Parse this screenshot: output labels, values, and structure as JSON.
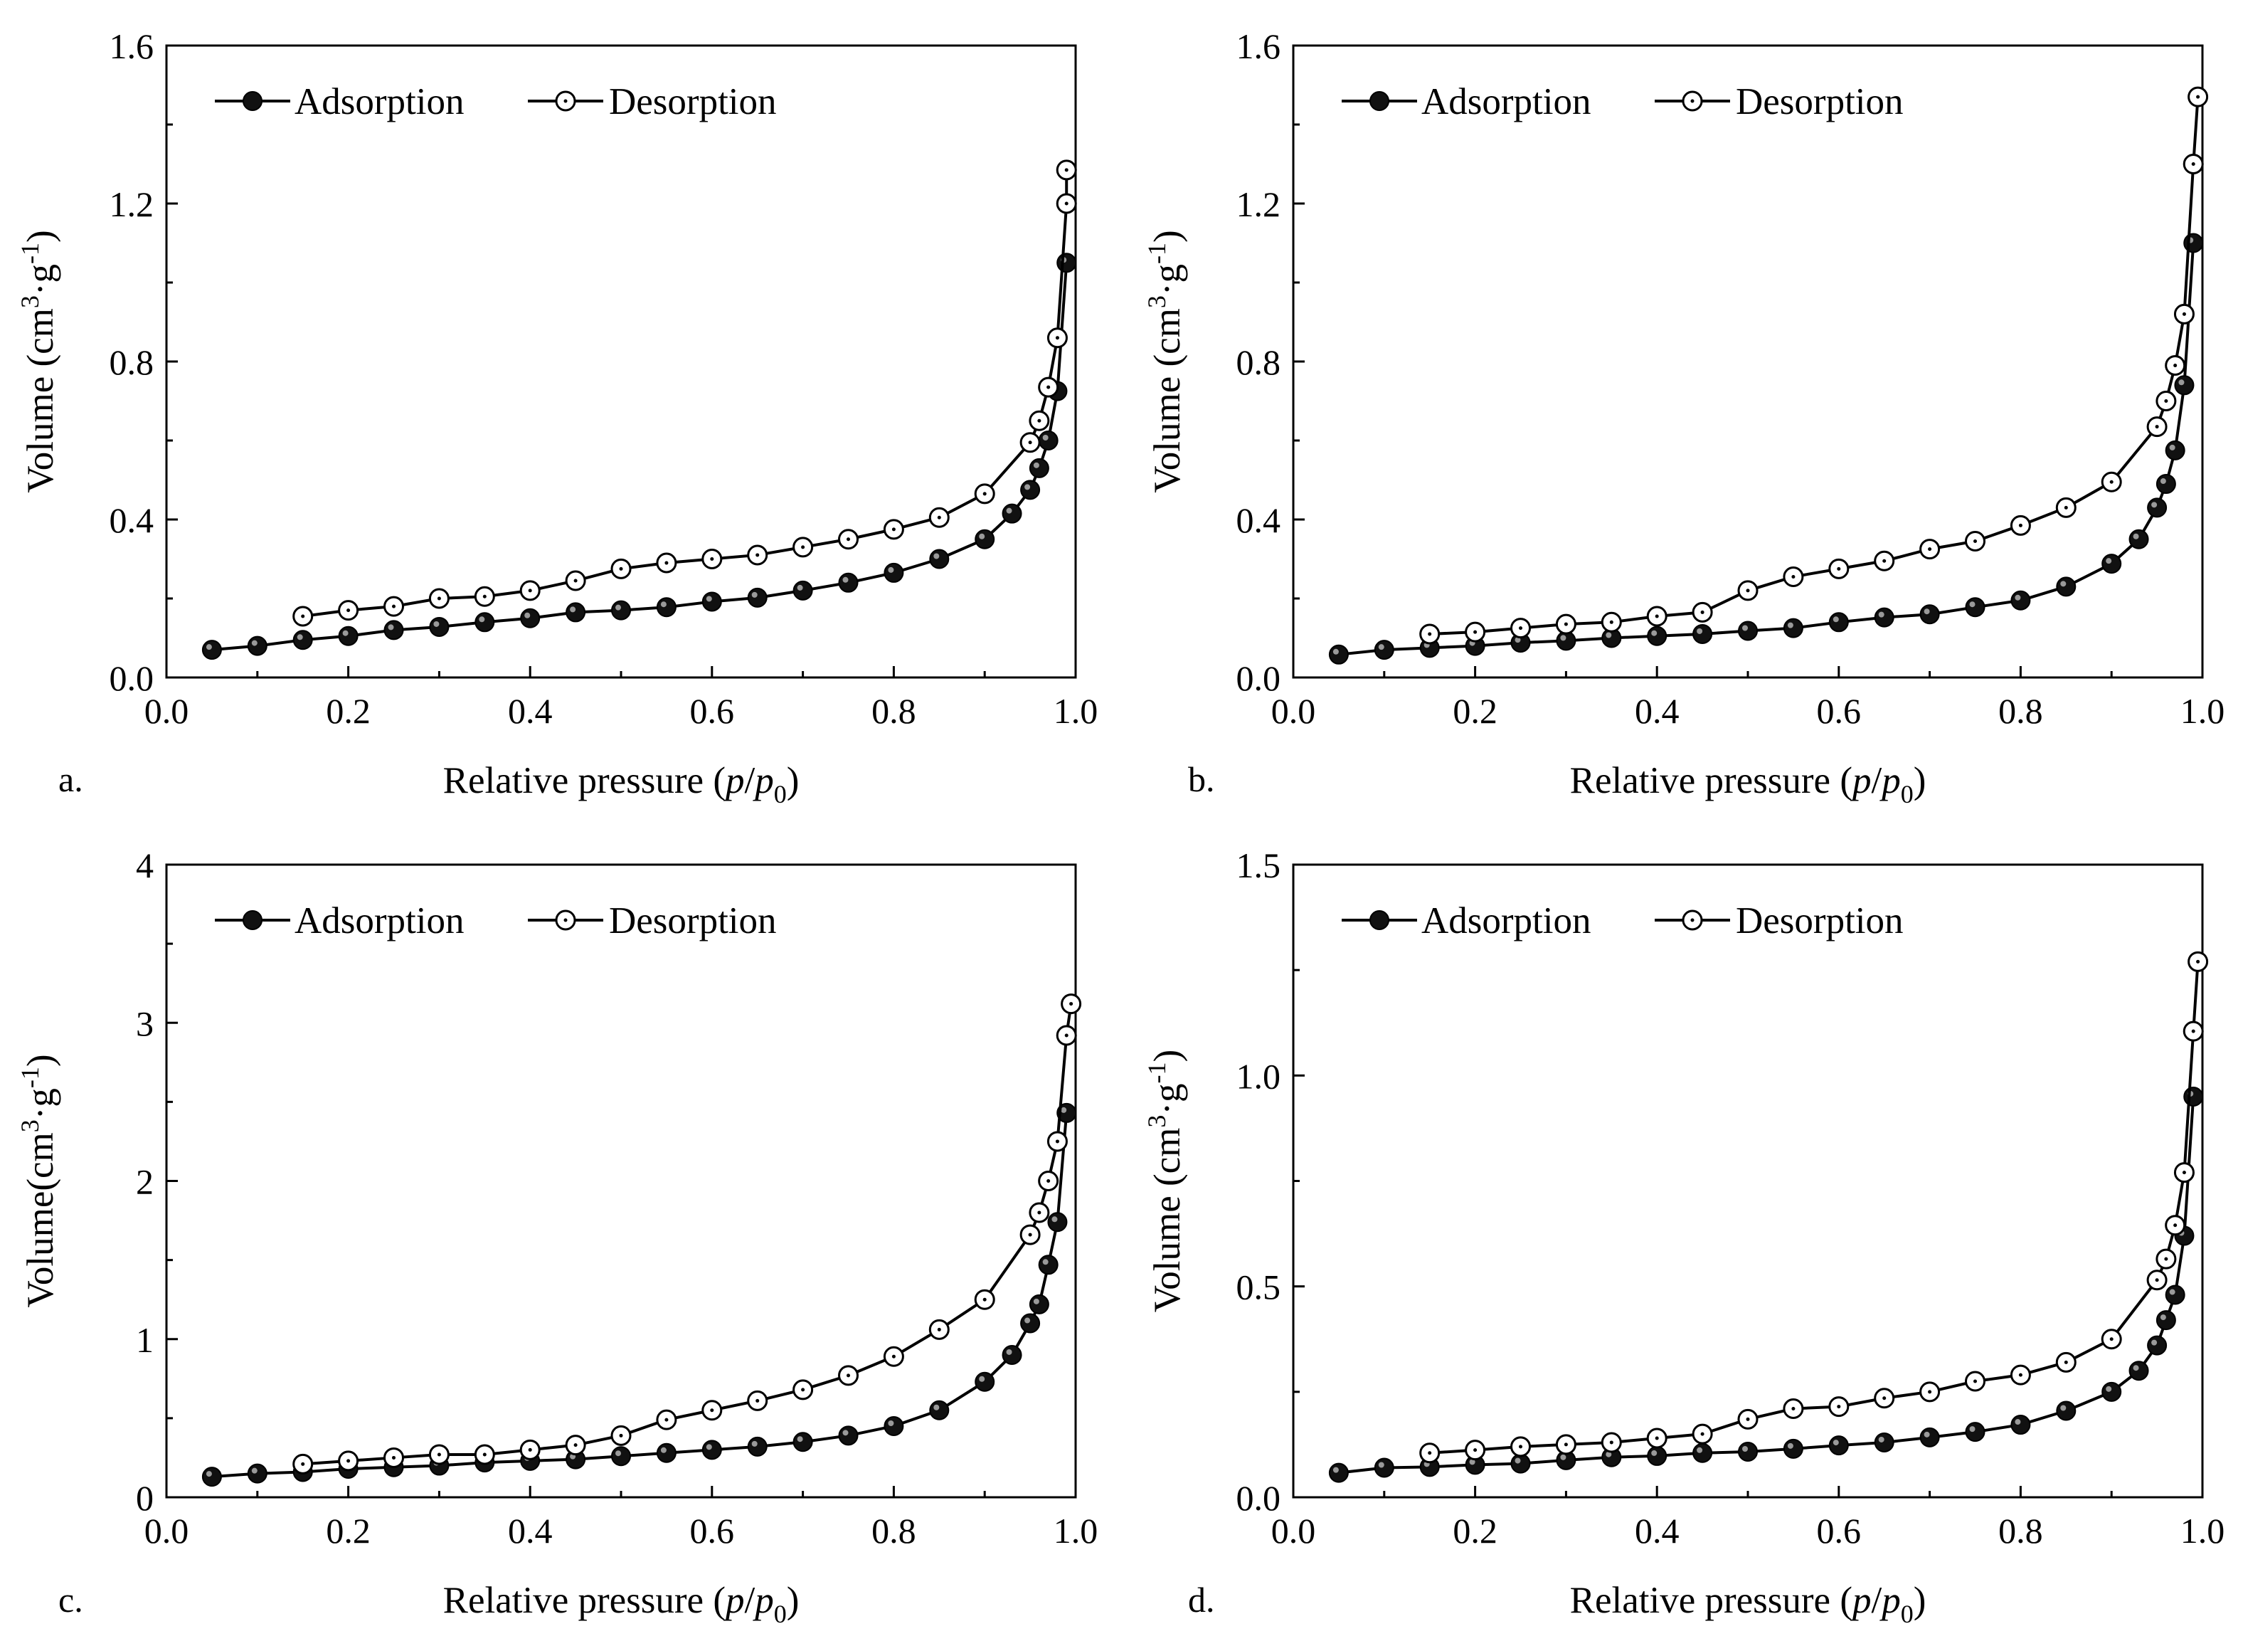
{
  "chart_data": [
    {
      "panel_label": "a.",
      "type": "line",
      "xlabel": "Relative pressure",
      "xlabel_var": [
        "p",
        "p",
        "0"
      ],
      "ylabel": "Volume (cm3·g-1)",
      "ylabel_parts": [
        "Volume (cm",
        "3",
        "·g",
        "-1",
        ")"
      ],
      "xlim": [
        0.0,
        1.0
      ],
      "ylim": [
        0.0,
        1.6
      ],
      "xticks": [
        "0.0",
        "0.2",
        "0.4",
        "0.6",
        "0.8",
        "1.0"
      ],
      "yticks": [
        "0.0",
        "0.4",
        "0.8",
        "1.2",
        "1.6"
      ],
      "legend_loc": "top-left",
      "series": [
        {
          "name": "Adsorption",
          "marker": "filled-circle",
          "x": [
            0.05,
            0.1,
            0.15,
            0.2,
            0.25,
            0.3,
            0.35,
            0.4,
            0.45,
            0.5,
            0.55,
            0.6,
            0.65,
            0.7,
            0.75,
            0.8,
            0.85,
            0.9,
            0.93,
            0.95,
            0.96,
            0.97,
            0.98,
            0.99
          ],
          "y": [
            0.07,
            0.08,
            0.095,
            0.105,
            0.12,
            0.128,
            0.14,
            0.15,
            0.165,
            0.17,
            0.178,
            0.192,
            0.202,
            0.22,
            0.24,
            0.265,
            0.3,
            0.35,
            0.415,
            0.475,
            0.53,
            0.6,
            0.725,
            1.05
          ]
        },
        {
          "name": "Desorption",
          "marker": "open-circle",
          "x": [
            0.99,
            0.99,
            0.98,
            0.97,
            0.96,
            0.95,
            0.9,
            0.85,
            0.8,
            0.75,
            0.7,
            0.65,
            0.6,
            0.55,
            0.5,
            0.45,
            0.4,
            0.35,
            0.3,
            0.25,
            0.2,
            0.15
          ],
          "y": [
            1.285,
            1.2,
            0.86,
            0.735,
            0.65,
            0.595,
            0.465,
            0.405,
            0.375,
            0.35,
            0.33,
            0.31,
            0.3,
            0.29,
            0.275,
            0.245,
            0.22,
            0.205,
            0.2,
            0.18,
            0.17,
            0.155
          ]
        }
      ]
    },
    {
      "panel_label": "b.",
      "type": "line",
      "xlabel": "Relative pressure",
      "xlabel_var": [
        "p",
        "p",
        "0"
      ],
      "ylabel": "Volume (cm3·g-1)",
      "ylabel_parts": [
        "Volume (cm",
        "3",
        "·g",
        "-1",
        ")"
      ],
      "xlim": [
        0.0,
        1.0
      ],
      "ylim": [
        0.0,
        1.6
      ],
      "xticks": [
        "0.0",
        "0.2",
        "0.4",
        "0.6",
        "0.8",
        "1.0"
      ],
      "yticks": [
        "0.0",
        "0.4",
        "0.8",
        "1.2",
        "1.6"
      ],
      "legend_loc": "top-left",
      "series": [
        {
          "name": "Adsorption",
          "marker": "filled-circle",
          "x": [
            0.05,
            0.1,
            0.15,
            0.2,
            0.25,
            0.3,
            0.35,
            0.4,
            0.45,
            0.5,
            0.55,
            0.6,
            0.65,
            0.7,
            0.75,
            0.8,
            0.85,
            0.9,
            0.93,
            0.95,
            0.96,
            0.97,
            0.98,
            0.99
          ],
          "y": [
            0.058,
            0.07,
            0.075,
            0.08,
            0.088,
            0.093,
            0.1,
            0.105,
            0.11,
            0.118,
            0.125,
            0.14,
            0.152,
            0.16,
            0.178,
            0.195,
            0.23,
            0.288,
            0.35,
            0.43,
            0.49,
            0.575,
            0.74,
            1.1
          ]
        },
        {
          "name": "Desorption",
          "marker": "open-circle",
          "x": [
            0.995,
            0.99,
            0.98,
            0.97,
            0.96,
            0.95,
            0.9,
            0.85,
            0.8,
            0.75,
            0.7,
            0.65,
            0.6,
            0.55,
            0.5,
            0.45,
            0.4,
            0.35,
            0.3,
            0.25,
            0.2,
            0.15
          ],
          "y": [
            1.47,
            1.3,
            0.92,
            0.79,
            0.7,
            0.635,
            0.495,
            0.43,
            0.385,
            0.345,
            0.325,
            0.295,
            0.275,
            0.255,
            0.22,
            0.165,
            0.155,
            0.14,
            0.135,
            0.125,
            0.115,
            0.11
          ]
        }
      ]
    },
    {
      "panel_label": "c.",
      "type": "line",
      "xlabel": "Relative pressure",
      "xlabel_var": [
        "p",
        "p",
        "0"
      ],
      "ylabel": "Volume(cm3·g-1)",
      "ylabel_parts": [
        "Volume(cm",
        "3",
        "·g",
        "-1",
        ")"
      ],
      "xlim": [
        0.0,
        1.0
      ],
      "ylim": [
        0,
        4
      ],
      "xticks": [
        "0.0",
        "0.2",
        "0.4",
        "0.6",
        "0.8",
        "1.0"
      ],
      "yticks": [
        "0",
        "1",
        "2",
        "3",
        "4"
      ],
      "legend_loc": "top-left",
      "series": [
        {
          "name": "Adsorption",
          "marker": "filled-circle",
          "x": [
            0.05,
            0.1,
            0.15,
            0.2,
            0.25,
            0.3,
            0.35,
            0.4,
            0.45,
            0.5,
            0.55,
            0.6,
            0.65,
            0.7,
            0.75,
            0.8,
            0.85,
            0.9,
            0.93,
            0.95,
            0.96,
            0.97,
            0.98,
            0.99
          ],
          "y": [
            0.13,
            0.15,
            0.16,
            0.18,
            0.19,
            0.2,
            0.22,
            0.23,
            0.24,
            0.26,
            0.28,
            0.3,
            0.32,
            0.35,
            0.39,
            0.45,
            0.55,
            0.73,
            0.9,
            1.1,
            1.22,
            1.47,
            1.74,
            2.43
          ]
        },
        {
          "name": "Desorption",
          "marker": "open-circle",
          "x": [
            0.995,
            0.99,
            0.98,
            0.97,
            0.96,
            0.95,
            0.9,
            0.85,
            0.8,
            0.75,
            0.7,
            0.65,
            0.6,
            0.55,
            0.5,
            0.45,
            0.4,
            0.35,
            0.3,
            0.25,
            0.2,
            0.15
          ],
          "y": [
            3.12,
            2.92,
            2.25,
            2.0,
            1.8,
            1.66,
            1.25,
            1.06,
            0.89,
            0.77,
            0.68,
            0.61,
            0.55,
            0.49,
            0.39,
            0.33,
            0.3,
            0.27,
            0.27,
            0.25,
            0.23,
            0.21
          ]
        }
      ]
    },
    {
      "panel_label": "d.",
      "type": "line",
      "xlabel": "Relative pressure",
      "xlabel_var": [
        "p",
        "p",
        "0"
      ],
      "ylabel": "Volume (cm3·g-1)",
      "ylabel_parts": [
        "Volume (cm",
        "3",
        "·g",
        "-1",
        ")"
      ],
      "xlim": [
        0.0,
        1.0
      ],
      "ylim": [
        0.0,
        1.5
      ],
      "xticks": [
        "0.0",
        "0.2",
        "0.4",
        "0.6",
        "0.8",
        "1.0"
      ],
      "yticks": [
        "0.0",
        "0.5",
        "1.0",
        "1.5"
      ],
      "legend_loc": "top-left",
      "series": [
        {
          "name": "Adsorption",
          "marker": "filled-circle",
          "x": [
            0.05,
            0.1,
            0.15,
            0.2,
            0.25,
            0.3,
            0.35,
            0.4,
            0.45,
            0.5,
            0.55,
            0.6,
            0.65,
            0.7,
            0.75,
            0.8,
            0.85,
            0.9,
            0.93,
            0.95,
            0.96,
            0.97,
            0.98,
            0.99
          ],
          "y": [
            0.058,
            0.07,
            0.072,
            0.077,
            0.08,
            0.088,
            0.095,
            0.098,
            0.105,
            0.108,
            0.115,
            0.123,
            0.13,
            0.142,
            0.155,
            0.172,
            0.205,
            0.25,
            0.3,
            0.36,
            0.42,
            0.48,
            0.62,
            0.95
          ]
        },
        {
          "name": "Desorption",
          "marker": "open-circle",
          "x": [
            0.995,
            0.99,
            0.98,
            0.97,
            0.96,
            0.95,
            0.9,
            0.85,
            0.8,
            0.75,
            0.7,
            0.65,
            0.6,
            0.55,
            0.5,
            0.45,
            0.4,
            0.35,
            0.3,
            0.25,
            0.2,
            0.15
          ],
          "y": [
            1.27,
            1.105,
            0.77,
            0.645,
            0.565,
            0.515,
            0.375,
            0.32,
            0.29,
            0.275,
            0.25,
            0.235,
            0.215,
            0.21,
            0.185,
            0.15,
            0.14,
            0.13,
            0.125,
            0.12,
            0.112,
            0.105
          ]
        }
      ]
    }
  ]
}
